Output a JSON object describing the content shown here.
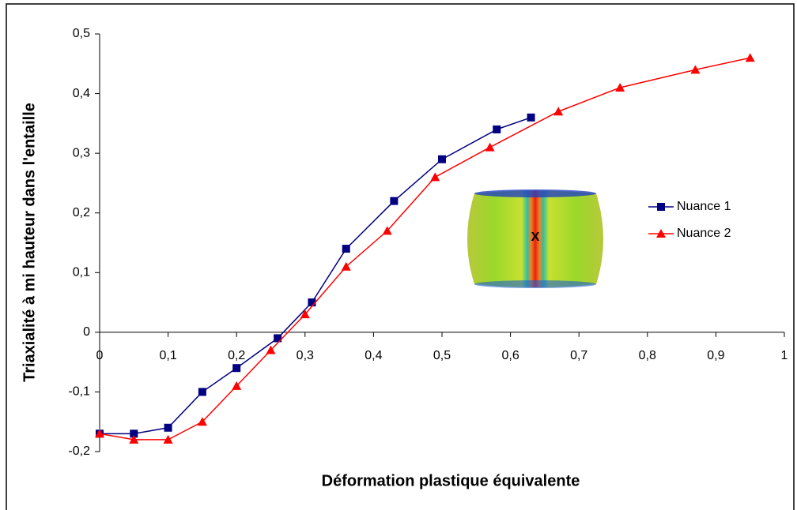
{
  "chart_data": {
    "type": "line",
    "xlabel": "Déformation plastique équivalente",
    "ylabel": "Triaxialité à mi hauteur dans l'entaille",
    "inset_label": "X",
    "xlim": [
      0,
      1
    ],
    "ylim": [
      -0.2,
      0.5
    ],
    "xticks": [
      0,
      {
        "value": 0.1,
        "label": "0,1"
      },
      {
        "value": 0.2,
        "label": "0,2"
      },
      {
        "value": 0.3,
        "label": "0,3"
      },
      {
        "value": 0.4,
        "label": "0,4"
      },
      {
        "value": 0.5,
        "label": "0,5"
      },
      {
        "value": 0.6,
        "label": "0,6"
      },
      {
        "value": 0.7,
        "label": "0,7"
      },
      {
        "value": 0.8,
        "label": "0,8"
      },
      {
        "value": 0.9,
        "label": "0,9"
      },
      1
    ],
    "yticks": [
      {
        "value": -0.2,
        "label": "-0,2"
      },
      {
        "value": -0.1,
        "label": "-0,1"
      },
      0,
      {
        "value": 0.1,
        "label": "0,1"
      },
      {
        "value": 0.2,
        "label": "0,2"
      },
      {
        "value": 0.3,
        "label": "0,3"
      },
      {
        "value": 0.4,
        "label": "0,4"
      },
      {
        "value": 0.5,
        "label": "0,5"
      }
    ],
    "grid": false,
    "series": [
      {
        "name": "Nuance 1",
        "color": "#000080",
        "marker": "square",
        "x": [
          0,
          0.05,
          0.1,
          0.15,
          0.2,
          0.26,
          0.31,
          0.36,
          0.43,
          0.5,
          0.58,
          0.63
        ],
        "values": [
          -0.17,
          -0.17,
          -0.16,
          -0.1,
          -0.06,
          -0.01,
          0.05,
          0.14,
          0.22,
          0.29,
          0.34,
          0.36
        ]
      },
      {
        "name": "Nuance 2",
        "color": "#ff0000",
        "marker": "triangle",
        "x": [
          0,
          0.05,
          0.1,
          0.15,
          0.2,
          0.25,
          0.3,
          0.36,
          0.42,
          0.49,
          0.57,
          0.67,
          0.76,
          0.87,
          0.95
        ],
        "values": [
          -0.17,
          -0.18,
          -0.18,
          -0.15,
          -0.09,
          -0.03,
          0.03,
          0.11,
          0.17,
          0.26,
          0.31,
          0.37,
          0.41,
          0.44,
          0.46
        ]
      }
    ]
  }
}
